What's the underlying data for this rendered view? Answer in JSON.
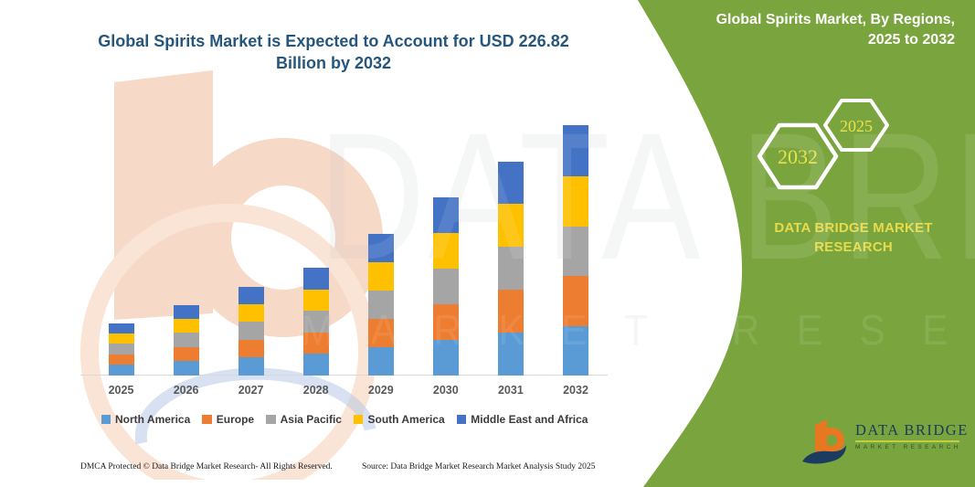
{
  "header": {
    "chart_title_line1": "Global Spirits Market is Expected to Account for USD 226.82",
    "chart_title_line2": "Billion by 2032"
  },
  "side_panel": {
    "title_line1": "Global Spirits Market, By Regions,",
    "title_line2": "2025 to 2032",
    "hexagons": [
      {
        "label": "2032"
      },
      {
        "label": "2025"
      }
    ],
    "brand_line1": "DATA BRIDGE MARKET",
    "brand_line2": "RESEARCH",
    "logo": {
      "name": "DATA BRIDGE",
      "subtitle": "MARKET RESEARCH"
    },
    "colors": {
      "panel_green": "#7AA53E",
      "accent_yellow": "#E7DB4B",
      "logo_orange": "#E87722",
      "logo_navy": "#1B3C60"
    }
  },
  "watermark": {
    "text_primary": "DATA BRIDGE",
    "text_secondary": "MARKET RESEARCH"
  },
  "footer": {
    "left": "DMCA Protected © Data Bridge Market Research-  All Rights Reserved.",
    "right": "Source: Data Bridge Market Research  Market Analysis Study 2025"
  },
  "chart_data": {
    "type": "bar",
    "stacked": true,
    "title": "Global Spirits Market is Expected to Account for USD 226.82 Billion by 2032",
    "unit": "USD Billion",
    "categories": [
      "2025",
      "2026",
      "2027",
      "2028",
      "2029",
      "2030",
      "2031",
      "2032"
    ],
    "series": [
      {
        "name": "North America",
        "color": "#5B9BD5",
        "values": [
          9.6,
          12.9,
          16.3,
          19.6,
          26.0,
          32.4,
          39.0,
          44.5
        ]
      },
      {
        "name": "Europe",
        "color": "#ED7D31",
        "values": [
          9.5,
          12.8,
          16.1,
          19.5,
          25.6,
          32.3,
          38.9,
          45.5
        ]
      },
      {
        "name": "Asia Pacific",
        "color": "#A5A5A5",
        "values": [
          9.5,
          12.8,
          16.2,
          19.5,
          25.7,
          32.2,
          38.8,
          45.2
        ]
      },
      {
        "name": "South America",
        "color": "#FFC000",
        "values": [
          9.5,
          12.9,
          16.1,
          19.5,
          25.6,
          32.3,
          38.7,
          45.5
        ]
      },
      {
        "name": "Middle East and Africa",
        "color": "#4472C4",
        "values": [
          9.4,
          12.5,
          16.1,
          19.3,
          25.7,
          32.1,
          38.7,
          46.12
        ]
      }
    ],
    "totals": [
      47.5,
      63.9,
      80.8,
      97.4,
      128.6,
      161.3,
      194.1,
      226.82
    ],
    "ylim": [
      0,
      230
    ],
    "grid": false,
    "y_axis_shown": false,
    "value_labels_shown": false,
    "legend_position": "bottom"
  }
}
